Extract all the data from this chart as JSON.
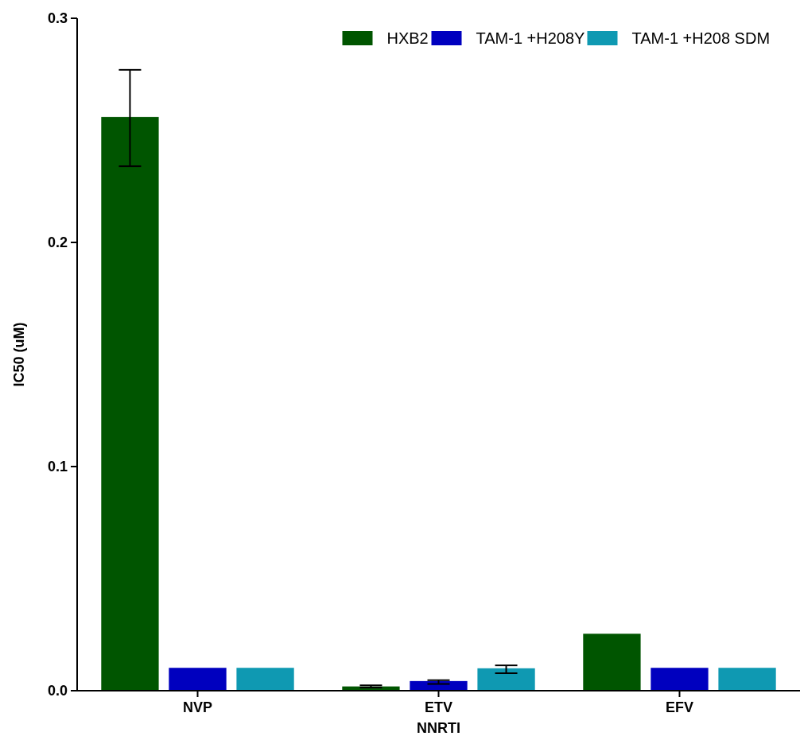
{
  "chart_data": {
    "type": "bar",
    "xlabel": "NNRTI",
    "ylabel": "IC50 (uM)",
    "categories": [
      "NVP",
      "ETV",
      "EFV"
    ],
    "series": [
      {
        "name": "HXB2",
        "color": "#005500",
        "values": [
          0.256,
          0.0019,
          0.0254
        ],
        "errors": [
          [
            0.234,
            0.277
          ],
          0.0005,
          null
        ]
      },
      {
        "name": "TAM-1 +H208Y",
        "color": "#0000bf",
        "values": [
          0.0102,
          0.0043,
          0.0102
        ],
        "errors": [
          null,
          [
            0.003,
            0.0047
          ],
          null
        ]
      },
      {
        "name": "TAM-1 +H208 SDM",
        "color": "#0f99b2",
        "values": [
          0.0102,
          0.01,
          0.0102
        ],
        "errors": [
          null,
          [
            0.0078,
            0.0113
          ],
          null
        ]
      }
    ],
    "ylim": [
      0,
      0.3
    ],
    "yticks": [
      {
        "value": 0,
        "label": "0.0"
      },
      0.1,
      0.2,
      0.3
    ],
    "legend": "top right"
  }
}
